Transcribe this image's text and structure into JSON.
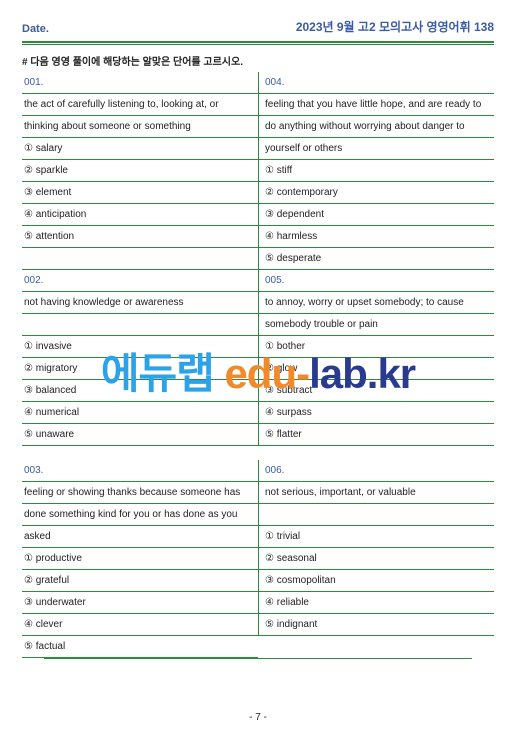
{
  "header": {
    "date_label": "Date.",
    "title": "2023년 9월 고2 모의고사 영영어휘 138"
  },
  "instruction": "# 다음 영영 풀이에 해당하는 알맞은 단어를 고르시오.",
  "watermark": {
    "part1": "에듀랩 ",
    "part2": "edu-",
    "part3": "lab.kr"
  },
  "footer": "- 7 -",
  "rows": [
    {
      "l": "001.",
      "r": "004.",
      "lcls": "qnum",
      "rcls": "qnum"
    },
    {
      "l": "the act of carefully listening to, looking at, or",
      "r": "feeling that you have little hope, and are ready to"
    },
    {
      "l": "thinking about someone or something",
      "r": "do anything without worrying about danger to"
    },
    {
      "l": "① salary",
      "r": "yourself or others"
    },
    {
      "l": "② sparkle",
      "r": "① stiff"
    },
    {
      "l": "③ element",
      "r": "② contemporary"
    },
    {
      "l": "④ anticipation",
      "r": "③ dependent"
    },
    {
      "l": "⑤ attention",
      "r": "④ harmless"
    },
    {
      "l": "",
      "r": "⑤ desperate"
    },
    {
      "l": "002.",
      "r": "005.",
      "lcls": "qnum",
      "rcls": "qnum"
    },
    {
      "l": "not having knowledge or awareness",
      "r": "to annoy, worry or upset somebody; to cause"
    },
    {
      "l": "",
      "r": "somebody trouble or pain"
    },
    {
      "l": "① invasive",
      "r": "① bother"
    },
    {
      "l": "② migratory",
      "r": "② glow"
    },
    {
      "l": "③ balanced",
      "r": "③ subtract"
    },
    {
      "l": "④ numerical",
      "r": "④ surpass"
    },
    {
      "l": "⑤ unaware",
      "r": "⑤ flatter"
    },
    {
      "spacer": true
    },
    {
      "l": "003.",
      "r": "006.",
      "lcls": "qnum",
      "rcls": "qnum"
    },
    {
      "l": "feeling or showing thanks because someone has",
      "r": "not serious, important, or valuable"
    },
    {
      "l": "done something kind for you or has done as you",
      "r": ""
    },
    {
      "l": "asked",
      "r": "① trivial"
    },
    {
      "l": "① productive",
      "r": "② seasonal"
    },
    {
      "l": "② grateful",
      "r": "③ cosmopolitan"
    },
    {
      "l": "③ underwater",
      "r": "④ reliable"
    },
    {
      "l": "④ clever",
      "r": "⑤ indignant"
    },
    {
      "l": "⑤ factual",
      "r": "",
      "noRightBorder": true
    }
  ]
}
